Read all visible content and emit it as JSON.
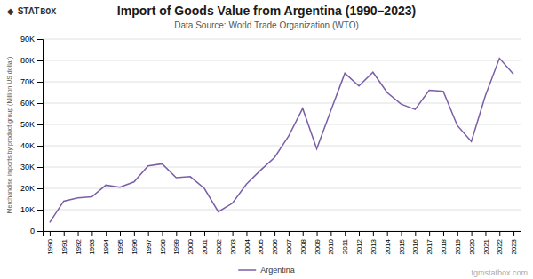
{
  "chart_data": {
    "type": "line",
    "title": "Import of Goods Value from Argentina (1990–2023)",
    "subtitle": "Data Source: World Trade Organization (WTO)",
    "y_label": "Merchandise imports by product group (Million US dollar)",
    "annotations": [
      "tgmstatbox.com",
      "◆",
      "STAT",
      "BOX"
    ],
    "x": [
      1990,
      1991,
      1992,
      1993,
      1994,
      1995,
      1996,
      1997,
      1998,
      1999,
      2000,
      2001,
      2002,
      2003,
      2004,
      2005,
      2006,
      2007,
      2008,
      2009,
      2010,
      2011,
      2012,
      2013,
      2014,
      2015,
      2016,
      2017,
      2018,
      2019,
      2020,
      2021,
      2022,
      2023
    ],
    "series": [
      {
        "name": "Argentina",
        "color": "#7B5EA7",
        "values": [
          4000,
          14000,
          15500,
          16000,
          21500,
          20500,
          23000,
          30500,
          31500,
          25000,
          25500,
          20000,
          9000,
          13000,
          22000,
          28500,
          34500,
          44500,
          57500,
          38500,
          56500,
          74000,
          68000,
          74500,
          65000,
          59500,
          57000,
          66000,
          65500,
          49500,
          42000,
          63500,
          81000,
          73500
        ]
      }
    ],
    "xlim": [
      1989.5,
      2023.5
    ],
    "xticks": [
      1990,
      1991,
      1992,
      1993,
      1994,
      1995,
      1996,
      1997,
      1998,
      1999,
      2000,
      2001,
      2002,
      2003,
      2004,
      2005,
      2006,
      2007,
      2008,
      2009,
      2010,
      2011,
      2012,
      2013,
      2014,
      2015,
      2016,
      2017,
      2018,
      2019,
      2020,
      2021,
      2022,
      2023
    ],
    "ylim": [
      0,
      90000
    ],
    "yticks": [
      0,
      {
        "value": 10000,
        "label": "10K"
      },
      {
        "value": 20000,
        "label": "20K"
      },
      {
        "value": 30000,
        "label": "30K"
      },
      {
        "value": 40000,
        "label": "40K"
      },
      {
        "value": 50000,
        "label": "50K"
      },
      {
        "value": 60000,
        "label": "60K"
      },
      {
        "value": 70000,
        "label": "70K"
      },
      {
        "value": 80000,
        "label": "80K"
      },
      {
        "value": 90000,
        "label": "90K"
      }
    ],
    "grid": true,
    "legend": "bottom"
  }
}
